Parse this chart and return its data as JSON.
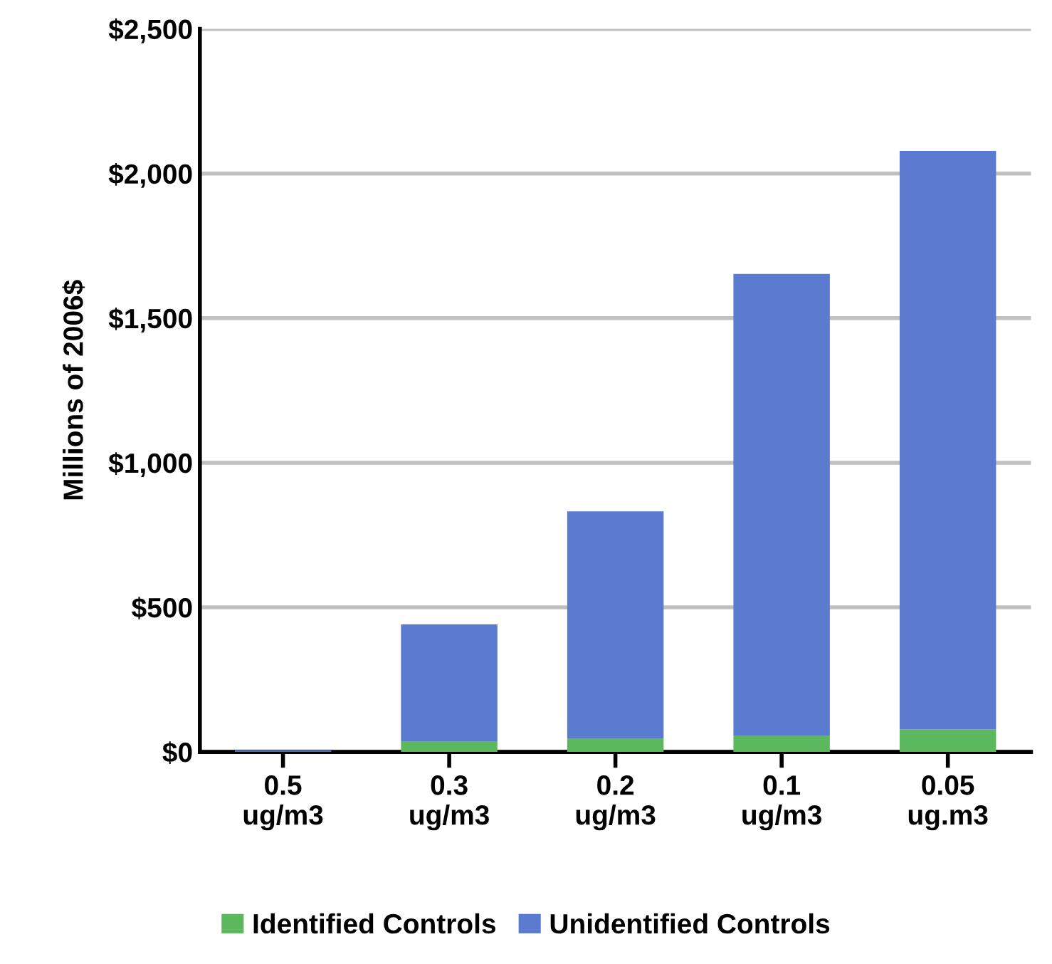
{
  "chart_data": {
    "type": "bar",
    "stacked": true,
    "ylabel": "Millions of 2006$",
    "categories": [
      "0.5\nug/m3",
      "0.3\nug/m3",
      "0.2\nug/m3",
      "0.1\nug/m3",
      "0.05\nug.m3"
    ],
    "series": [
      {
        "name": "Identified Controls",
        "color": "#5cb85c",
        "values": [
          2,
          37,
          47,
          57,
          78
        ]
      },
      {
        "name": "Unidentified Controls",
        "color": "#5a7bd0",
        "values": [
          3,
          404,
          785,
          1596,
          2000
        ]
      }
    ],
    "ylim": [
      0,
      2500
    ],
    "yticks": [
      {
        "value": 0,
        "label": "$0"
      },
      {
        "value": 500,
        "label": "$500"
      },
      {
        "value": 1000,
        "label": "$1,000"
      },
      {
        "value": 1500,
        "label": "$1,500"
      },
      {
        "value": 2000,
        "label": "$2,000"
      },
      {
        "value": 2500,
        "label": "$2,500"
      }
    ],
    "grid": "y",
    "legend": "bottom"
  }
}
